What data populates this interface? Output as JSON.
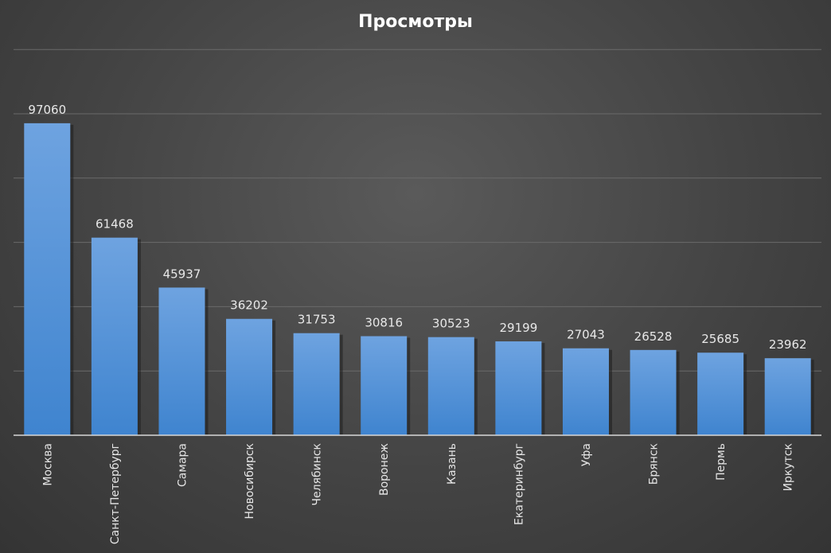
{
  "chart_data": {
    "type": "bar",
    "title": "Просмотры",
    "categories": [
      "Москва",
      "Санкт-Петербург",
      "Самара",
      "Новосибирск",
      "Челябинск",
      "Воронеж",
      "Казань",
      "Екатеринбург",
      "Уфа",
      "Брянск",
      "Пермь",
      "Иркутск"
    ],
    "values": [
      97060,
      61468,
      45937,
      36202,
      31753,
      30816,
      30523,
      29199,
      27043,
      26528,
      25685,
      23962
    ],
    "ylim": [
      0,
      120000
    ],
    "grid_step": 20000,
    "grid": true,
    "data_labels": true,
    "bar_color_top": "#6ea3e0",
    "bar_color_bottom": "#3f84cf"
  }
}
